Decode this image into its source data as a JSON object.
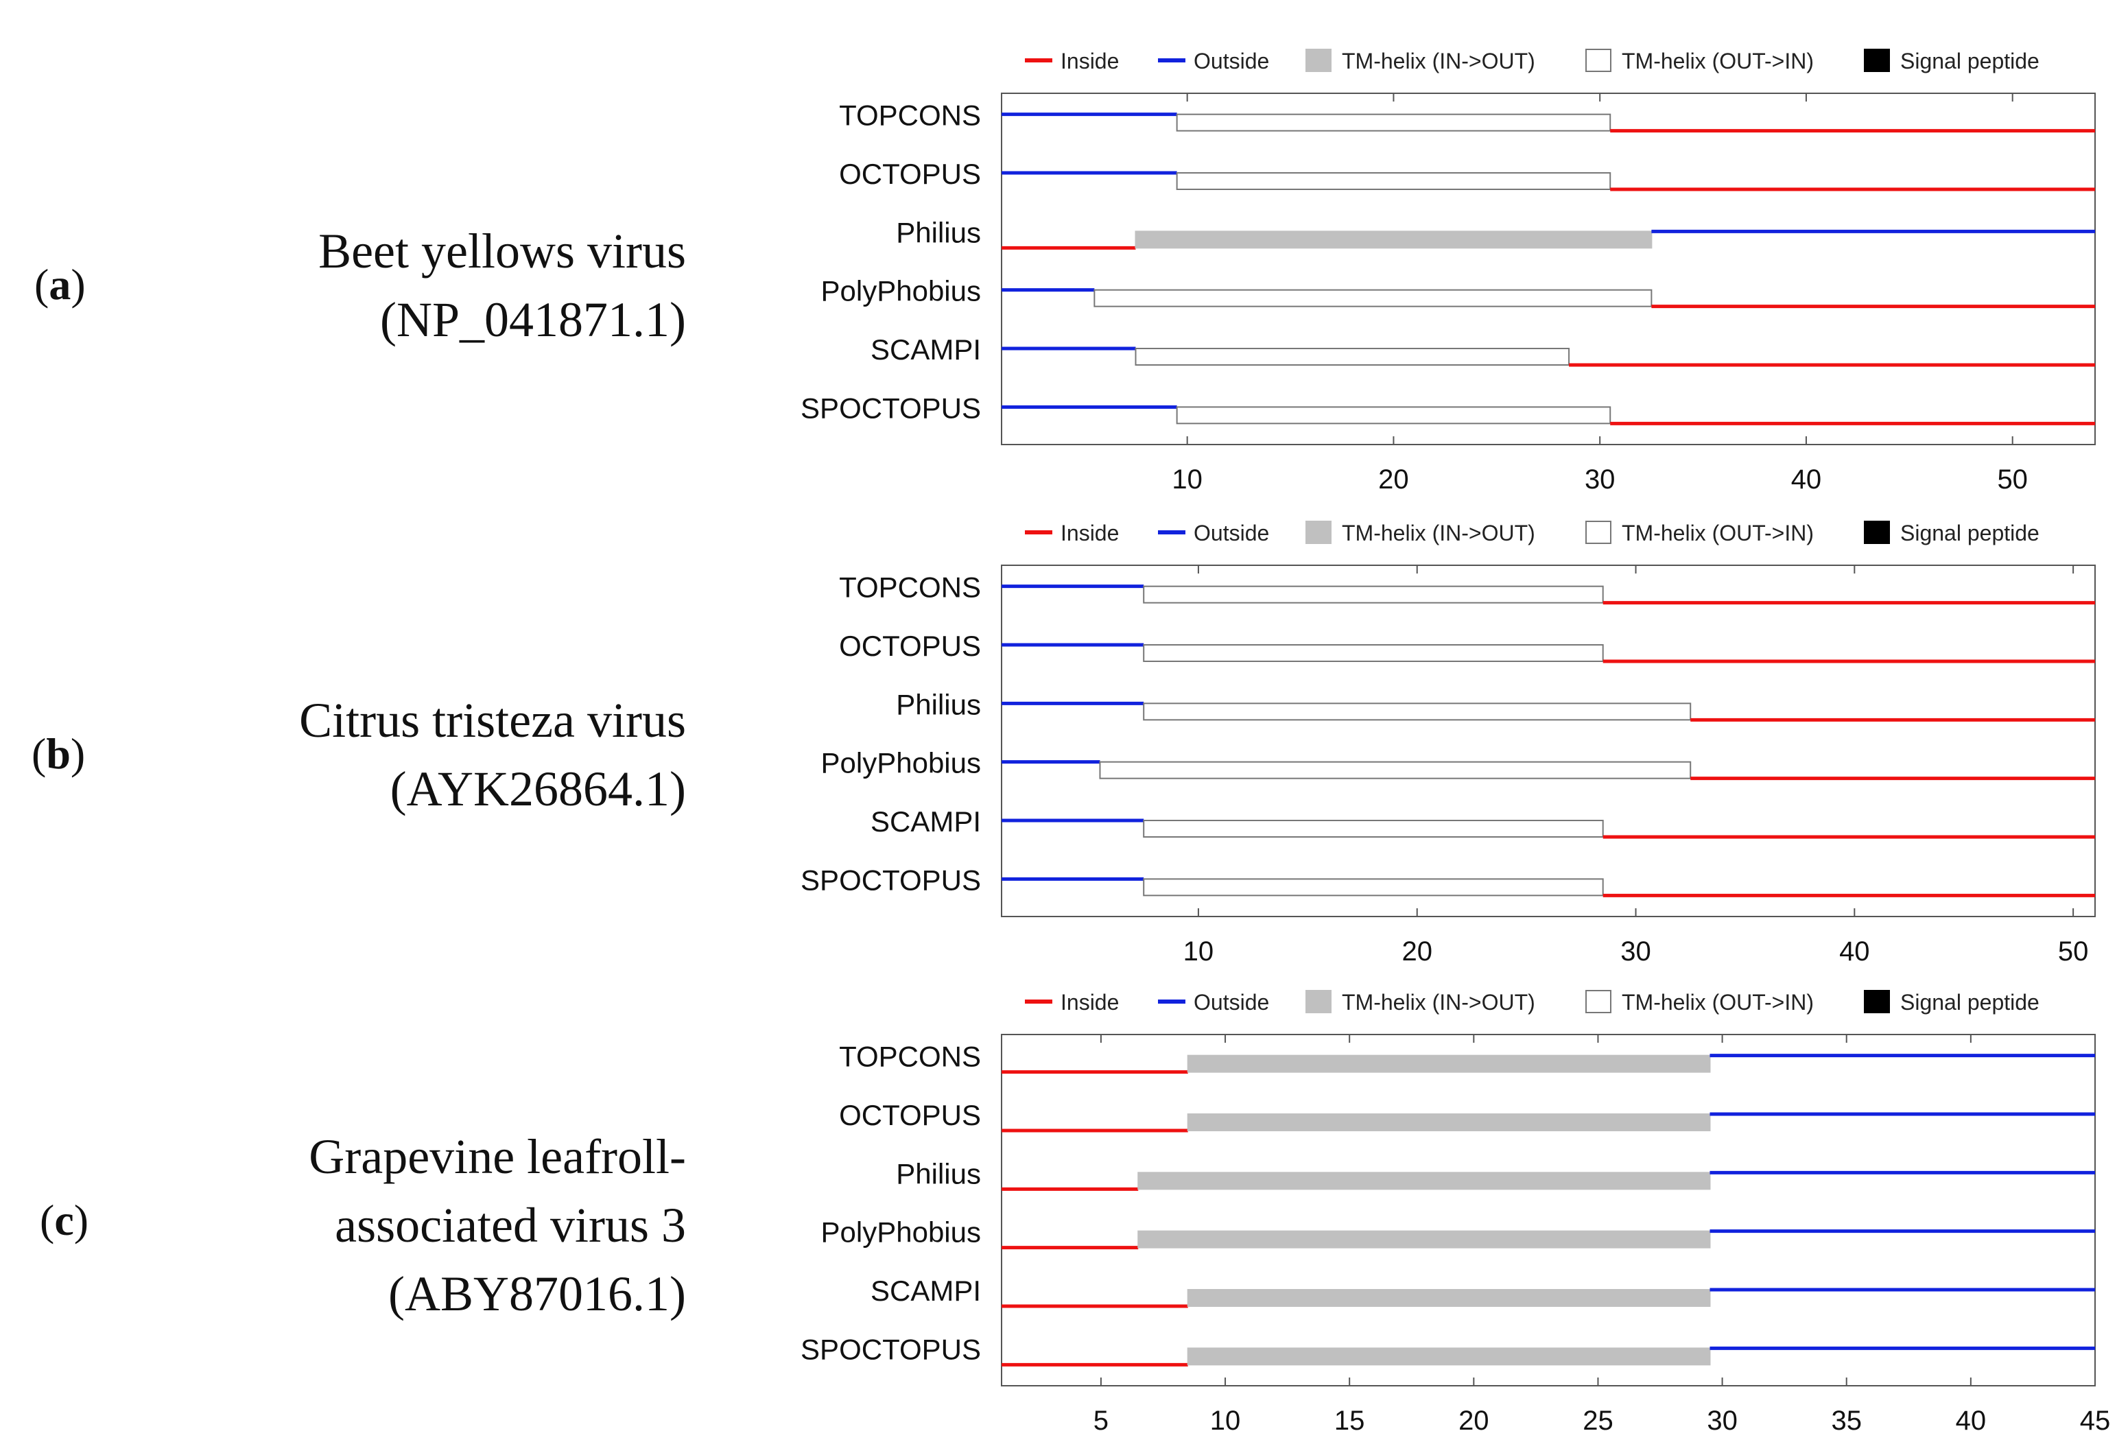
{
  "panels": [
    {
      "letter_prefix": "(",
      "letter": "a",
      "letter_suffix": ")",
      "title_lines": [
        "Beet yellows virus",
        "(NP_041871.1)"
      ]
    },
    {
      "letter_prefix": "(",
      "letter": "b",
      "letter_suffix": ")",
      "title_lines": [
        "Citrus tristeza virus",
        "(AYK26864.1)"
      ]
    },
    {
      "letter_prefix": "(",
      "letter": "c",
      "letter_suffix": ")",
      "title_lines": [
        "Grapevine leafroll-",
        "associated virus 3",
        "(ABY87016.1)"
      ]
    }
  ],
  "legend": [
    {
      "label": "Inside",
      "kind": "line",
      "color": "#ee1111"
    },
    {
      "label": "Outside",
      "kind": "line",
      "color": "#1122dd"
    },
    {
      "label": "TM-helix (IN->OUT)",
      "kind": "box",
      "color": "#c0c0c0"
    },
    {
      "label": "TM-helix (OUT->IN)",
      "kind": "box",
      "color": "#ffffff"
    },
    {
      "label": "Signal peptide",
      "kind": "box",
      "color": "#000000"
    }
  ],
  "colors": {
    "inside": "#ee1111",
    "outside": "#1122dd",
    "tm_in_out": "#c0c0c0",
    "tm_out_in": "#ffffff",
    "axis": "#555555"
  },
  "chart_data": [
    {
      "type": "topology",
      "panel": "a",
      "xlim": [
        1,
        54
      ],
      "xticks": [
        10,
        20,
        30,
        40,
        50
      ],
      "tracks": [
        {
          "method": "TOPCONS",
          "segments": [
            {
              "type": "outside",
              "start": 1,
              "end": 9.5
            },
            {
              "type": "tm_out_in",
              "start": 9.5,
              "end": 30.5
            },
            {
              "type": "inside",
              "start": 30.5,
              "end": 54
            }
          ]
        },
        {
          "method": "OCTOPUS",
          "segments": [
            {
              "type": "outside",
              "start": 1,
              "end": 9.5
            },
            {
              "type": "tm_out_in",
              "start": 9.5,
              "end": 30.5
            },
            {
              "type": "inside",
              "start": 30.5,
              "end": 54
            }
          ]
        },
        {
          "method": "Philius",
          "segments": [
            {
              "type": "inside",
              "start": 1,
              "end": 7.5
            },
            {
              "type": "tm_in_out",
              "start": 7.5,
              "end": 32.5
            },
            {
              "type": "outside",
              "start": 32.5,
              "end": 54
            }
          ]
        },
        {
          "method": "PolyPhobius",
          "segments": [
            {
              "type": "outside",
              "start": 1,
              "end": 5.5
            },
            {
              "type": "tm_out_in",
              "start": 5.5,
              "end": 32.5
            },
            {
              "type": "inside",
              "start": 32.5,
              "end": 54
            }
          ]
        },
        {
          "method": "SCAMPI",
          "segments": [
            {
              "type": "outside",
              "start": 1,
              "end": 7.5
            },
            {
              "type": "tm_out_in",
              "start": 7.5,
              "end": 28.5
            },
            {
              "type": "inside",
              "start": 28.5,
              "end": 54
            }
          ]
        },
        {
          "method": "SPOCTOPUS",
          "segments": [
            {
              "type": "outside",
              "start": 1,
              "end": 9.5
            },
            {
              "type": "tm_out_in",
              "start": 9.5,
              "end": 30.5
            },
            {
              "type": "inside",
              "start": 30.5,
              "end": 54
            }
          ]
        }
      ]
    },
    {
      "type": "topology",
      "panel": "b",
      "xlim": [
        1,
        51
      ],
      "xticks": [
        10,
        20,
        30,
        40,
        50
      ],
      "tracks": [
        {
          "method": "TOPCONS",
          "segments": [
            {
              "type": "outside",
              "start": 1,
              "end": 7.5
            },
            {
              "type": "tm_out_in",
              "start": 7.5,
              "end": 28.5
            },
            {
              "type": "inside",
              "start": 28.5,
              "end": 51
            }
          ]
        },
        {
          "method": "OCTOPUS",
          "segments": [
            {
              "type": "outside",
              "start": 1,
              "end": 7.5
            },
            {
              "type": "tm_out_in",
              "start": 7.5,
              "end": 28.5
            },
            {
              "type": "inside",
              "start": 28.5,
              "end": 51
            }
          ]
        },
        {
          "method": "Philius",
          "segments": [
            {
              "type": "outside",
              "start": 1,
              "end": 7.5
            },
            {
              "type": "tm_out_in",
              "start": 7.5,
              "end": 32.5
            },
            {
              "type": "inside",
              "start": 32.5,
              "end": 51
            }
          ]
        },
        {
          "method": "PolyPhobius",
          "segments": [
            {
              "type": "outside",
              "start": 1,
              "end": 5.5
            },
            {
              "type": "tm_out_in",
              "start": 5.5,
              "end": 32.5
            },
            {
              "type": "inside",
              "start": 32.5,
              "end": 51
            }
          ]
        },
        {
          "method": "SCAMPI",
          "segments": [
            {
              "type": "outside",
              "start": 1,
              "end": 7.5
            },
            {
              "type": "tm_out_in",
              "start": 7.5,
              "end": 28.5
            },
            {
              "type": "inside",
              "start": 28.5,
              "end": 51
            }
          ]
        },
        {
          "method": "SPOCTOPUS",
          "segments": [
            {
              "type": "outside",
              "start": 1,
              "end": 7.5
            },
            {
              "type": "tm_out_in",
              "start": 7.5,
              "end": 28.5
            },
            {
              "type": "inside",
              "start": 28.5,
              "end": 51
            }
          ]
        }
      ]
    },
    {
      "type": "topology",
      "panel": "c",
      "xlim": [
        1,
        45
      ],
      "xticks": [
        5,
        10,
        15,
        20,
        25,
        30,
        35,
        40,
        45
      ],
      "tracks": [
        {
          "method": "TOPCONS",
          "segments": [
            {
              "type": "inside",
              "start": 1,
              "end": 8.5
            },
            {
              "type": "tm_in_out",
              "start": 8.5,
              "end": 29.5
            },
            {
              "type": "outside",
              "start": 29.5,
              "end": 45
            }
          ]
        },
        {
          "method": "OCTOPUS",
          "segments": [
            {
              "type": "inside",
              "start": 1,
              "end": 8.5
            },
            {
              "type": "tm_in_out",
              "start": 8.5,
              "end": 29.5
            },
            {
              "type": "outside",
              "start": 29.5,
              "end": 45
            }
          ]
        },
        {
          "method": "Philius",
          "segments": [
            {
              "type": "inside",
              "start": 1,
              "end": 6.5
            },
            {
              "type": "tm_in_out",
              "start": 6.5,
              "end": 29.5
            },
            {
              "type": "outside",
              "start": 29.5,
              "end": 45
            }
          ]
        },
        {
          "method": "PolyPhobius",
          "segments": [
            {
              "type": "inside",
              "start": 1,
              "end": 6.5
            },
            {
              "type": "tm_in_out",
              "start": 6.5,
              "end": 29.5
            },
            {
              "type": "outside",
              "start": 29.5,
              "end": 45
            }
          ]
        },
        {
          "method": "SCAMPI",
          "segments": [
            {
              "type": "inside",
              "start": 1,
              "end": 8.5
            },
            {
              "type": "tm_in_out",
              "start": 8.5,
              "end": 29.5
            },
            {
              "type": "outside",
              "start": 29.5,
              "end": 45
            }
          ]
        },
        {
          "method": "SPOCTOPUS",
          "segments": [
            {
              "type": "inside",
              "start": 1,
              "end": 8.5
            },
            {
              "type": "tm_in_out",
              "start": 8.5,
              "end": 29.5
            },
            {
              "type": "outside",
              "start": 29.5,
              "end": 45
            }
          ]
        }
      ]
    }
  ]
}
